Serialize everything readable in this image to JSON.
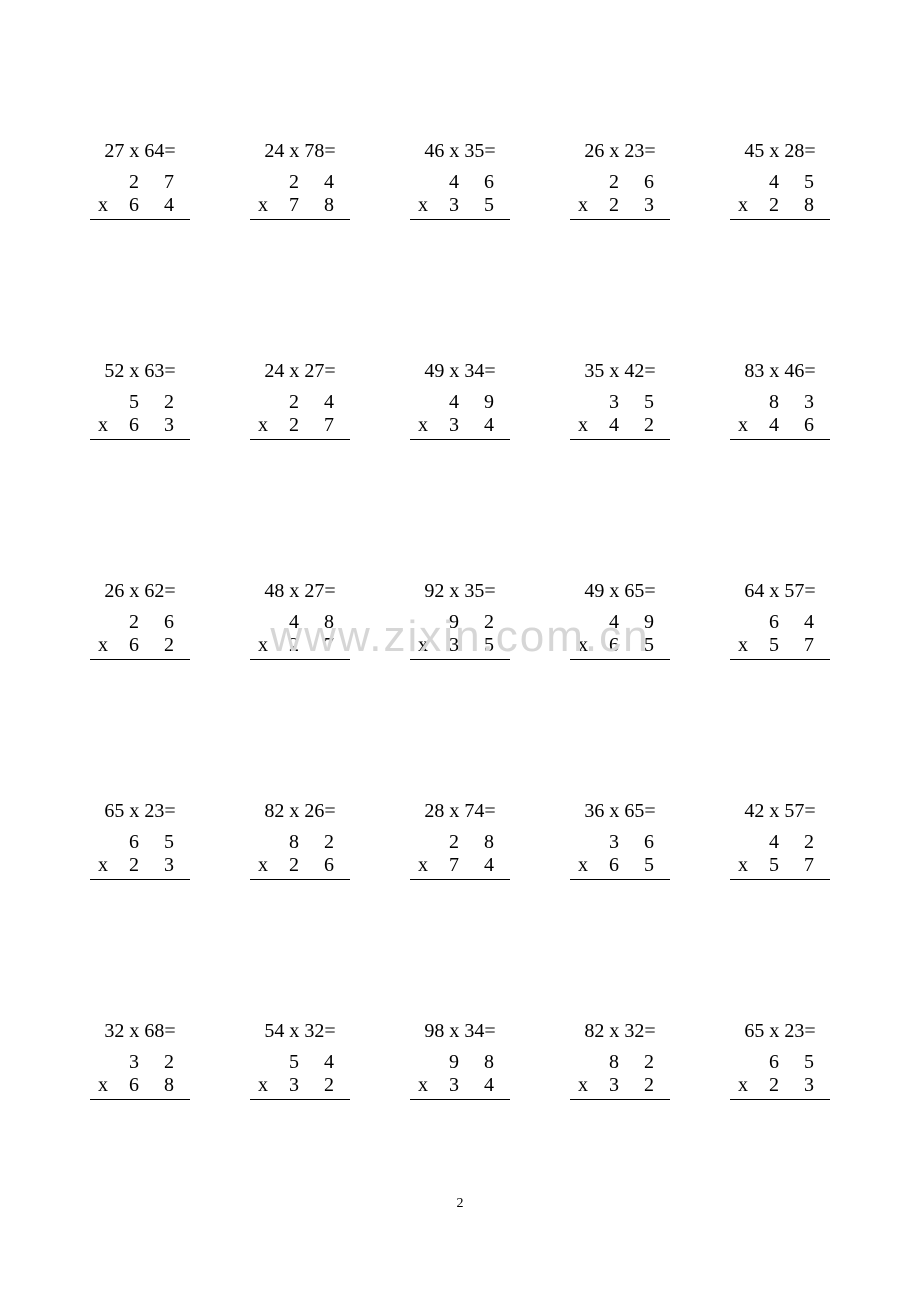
{
  "page_number": "2",
  "watermark_text": "www.zixin.com.cn",
  "colors": {
    "text": "#000000",
    "background": "#ffffff",
    "watermark": "#d6d6d6",
    "border": "#000000"
  },
  "typography": {
    "body_fontsize": 20,
    "watermark_fontsize": 44,
    "page_num_fontsize": 14,
    "font_family": "Times New Roman",
    "digit_letter_spacing": 10
  },
  "layout": {
    "rows": 5,
    "cols": 5,
    "row_gap": 140
  },
  "multiply_symbol": "x",
  "problems": [
    [
      {
        "a": "27",
        "b": "64",
        "expr": "27 x 64=",
        "top": "2  7",
        "bot": "6  4"
      },
      {
        "a": "24",
        "b": "78",
        "expr": "24 x 78=",
        "top": "2  4",
        "bot": "7  8"
      },
      {
        "a": "46",
        "b": "35",
        "expr": "46 x 35=",
        "top": "4  6",
        "bot": "3  5"
      },
      {
        "a": "26",
        "b": "23",
        "expr": "26 x 23=",
        "top": "2  6",
        "bot": "2  3"
      },
      {
        "a": "45",
        "b": "28",
        "expr": "45 x 28=",
        "top": "4  5",
        "bot": "2  8"
      }
    ],
    [
      {
        "a": "52",
        "b": "63",
        "expr": "52 x 63=",
        "top": "5  2",
        "bot": "6  3"
      },
      {
        "a": "24",
        "b": "27",
        "expr": "24 x 27=",
        "top": "2  4",
        "bot": "2  7"
      },
      {
        "a": "49",
        "b": "34",
        "expr": "49 x 34=",
        "top": "4  9",
        "bot": "3  4"
      },
      {
        "a": "35",
        "b": "42",
        "expr": "35 x 42=",
        "top": "3  5",
        "bot": "4  2"
      },
      {
        "a": "83",
        "b": "46",
        "expr": "83 x 46=",
        "top": "8  3",
        "bot": "4  6"
      }
    ],
    [
      {
        "a": "26",
        "b": "62",
        "expr": "26 x 62=",
        "top": "2  6",
        "bot": "6  2"
      },
      {
        "a": "48",
        "b": "27",
        "expr": "48 x 27=",
        "top": "4  8",
        "bot": "2  7"
      },
      {
        "a": "92",
        "b": "35",
        "expr": "92 x 35=",
        "top": "9  2",
        "bot": "3  5"
      },
      {
        "a": "49",
        "b": "65",
        "expr": "49 x 65=",
        "top": "4  9",
        "bot": "6  5"
      },
      {
        "a": "64",
        "b": "57",
        "expr": "64 x 57=",
        "top": "6  4",
        "bot": "5  7"
      }
    ],
    [
      {
        "a": "65",
        "b": "23",
        "expr": "65 x 23=",
        "top": "6  5",
        "bot": "2  3"
      },
      {
        "a": "82",
        "b": "26",
        "expr": "82 x 26=",
        "top": "8  2",
        "bot": "2  6"
      },
      {
        "a": "28",
        "b": "74",
        "expr": "28 x 74=",
        "top": "2  8",
        "bot": "7  4"
      },
      {
        "a": "36",
        "b": "65",
        "expr": "36 x 65=",
        "top": "3  6",
        "bot": "6  5"
      },
      {
        "a": "42",
        "b": "57",
        "expr": "42 x 57=",
        "top": "4  2",
        "bot": "5  7"
      }
    ],
    [
      {
        "a": "32",
        "b": "68",
        "expr": "32 x 68=",
        "top": "3  2",
        "bot": "6  8"
      },
      {
        "a": "54",
        "b": "32",
        "expr": "54 x 32=",
        "top": "5  4",
        "bot": "3  2"
      },
      {
        "a": "98",
        "b": "34",
        "expr": "98 x 34=",
        "top": "9  8",
        "bot": "3  4"
      },
      {
        "a": "82",
        "b": "32",
        "expr": "82 x 32=",
        "top": "8  2",
        "bot": "3  2"
      },
      {
        "a": "65",
        "b": "23",
        "expr": "65 x 23=",
        "top": "6  5",
        "bot": "2  3"
      }
    ]
  ]
}
